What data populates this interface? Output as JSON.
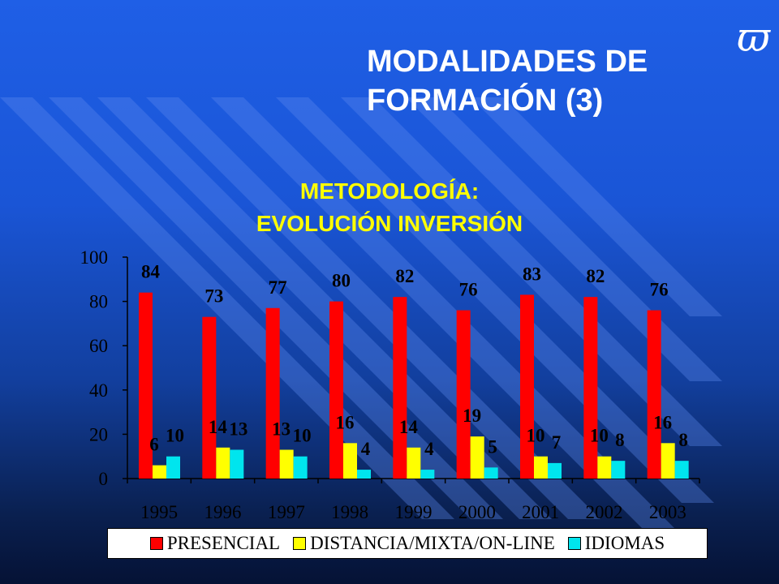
{
  "slide": {
    "title_line1": "MODALIDADES DE",
    "title_line2": "FORMACIÓN (3)",
    "logo_glyph": "ϖ"
  },
  "chart_data": {
    "type": "bar",
    "title_line1": "METODOLOGÍA:",
    "title_line2": "EVOLUCIÓN INVERSIÓN",
    "categories": [
      "1995",
      "1996",
      "1997",
      "1998",
      "1999",
      "2000",
      "2001",
      "2002",
      "2003"
    ],
    "series": [
      {
        "name": "PRESENCIAL",
        "color": "#ff0000",
        "values": [
          84,
          73,
          77,
          80,
          82,
          76,
          83,
          82,
          76
        ]
      },
      {
        "name": "DISTANCIA/MIXTA/ON-LINE",
        "color": "#ffff00",
        "values": [
          6,
          14,
          13,
          16,
          14,
          19,
          10,
          10,
          16
        ]
      },
      {
        "name": "IDIOMAS",
        "color": "#00e5ee",
        "values": [
          10,
          13,
          10,
          4,
          4,
          5,
          7,
          8,
          8
        ]
      }
    ],
    "ylim": [
      0,
      100
    ],
    "yticks": [
      0,
      20,
      40,
      60,
      80,
      100
    ],
    "xlabel": "",
    "ylabel": "",
    "legend_position": "bottom",
    "grid": false
  }
}
